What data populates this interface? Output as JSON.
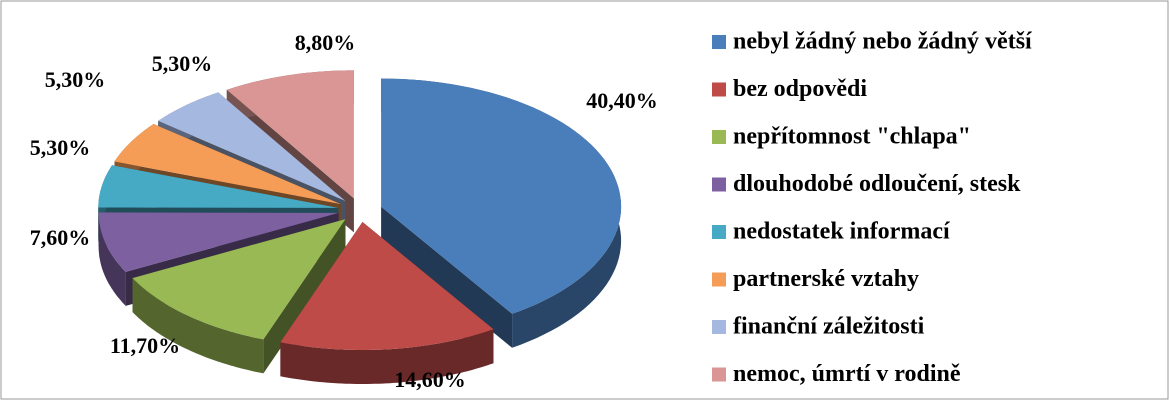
{
  "chart_data": {
    "type": "pie",
    "categories": [
      "nebyl žádný nebo žádný větší",
      "bez odpovědi",
      "nepřítomnost \"chlapa\"",
      "dlouhodobé odloučení, stesk",
      "nedostatek informací",
      "partnerské vztahy",
      "finanční záležitosti",
      "nemoc, úmrtí v rodině"
    ],
    "values": [
      40.4,
      14.6,
      11.7,
      7.6,
      5.3,
      5.3,
      5.3,
      8.8
    ],
    "value_labels": [
      "40,40%",
      "14,60%",
      "11,70%",
      "7,60%",
      "5,30%",
      "5,30%",
      "5,30%",
      "8,80%"
    ],
    "colors": [
      "#4a7ebb",
      "#be4b48",
      "#98b954",
      "#7d60a0",
      "#46aac5",
      "#f59d56",
      "#a5b8df",
      "#d99694"
    ],
    "legend": "right"
  }
}
